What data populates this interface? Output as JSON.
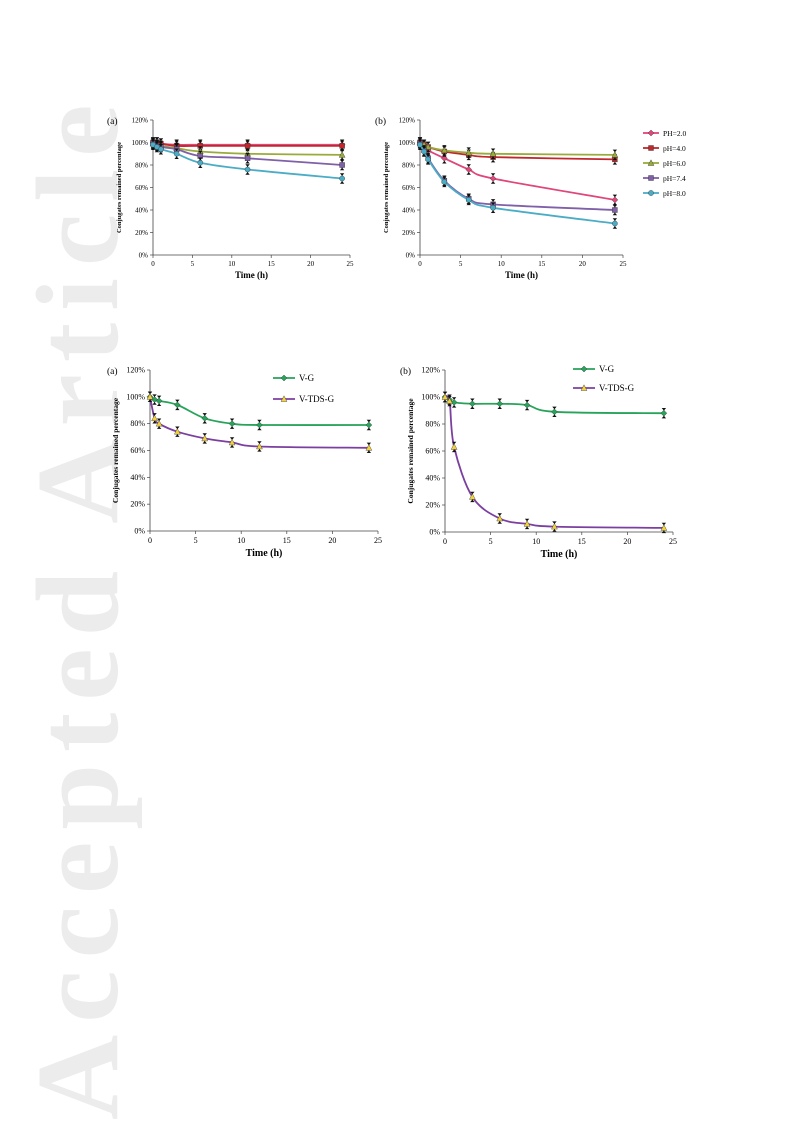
{
  "watermark": "Accepted Article",
  "chart_data": [
    {
      "id": "top-a",
      "type": "line",
      "panel_label": "(a)",
      "ylabel": "Conjugates remained percentage",
      "xlabel": "Time (h)",
      "xlim": [
        0,
        25
      ],
      "ylim": [
        0,
        120
      ],
      "xticks": [
        0,
        5,
        10,
        15,
        20,
        25
      ],
      "yticks": [
        0,
        20,
        40,
        60,
        80,
        100,
        120
      ],
      "legend": null,
      "series": [
        {
          "name": "PH=2.0",
          "color": "#e0457b",
          "x": [
            0,
            0.5,
            1,
            3,
            6,
            12,
            24
          ],
          "y": [
            100,
            100,
            99,
            98,
            98,
            98,
            98
          ]
        },
        {
          "name": "pH=4.0",
          "color": "#c0282d",
          "x": [
            0,
            0.5,
            1,
            3,
            6,
            12,
            24
          ],
          "y": [
            100,
            100,
            99,
            97,
            97,
            97,
            97
          ]
        },
        {
          "name": "pH=6.0",
          "color": "#9aab3b",
          "x": [
            0,
            0.5,
            1,
            3,
            6,
            12,
            24
          ],
          "y": [
            99,
            98,
            97,
            95,
            92,
            90,
            89
          ]
        },
        {
          "name": "pH=7.4",
          "color": "#8060a8",
          "x": [
            0,
            0.5,
            1,
            3,
            6,
            12,
            24
          ],
          "y": [
            99,
            97,
            96,
            94,
            88,
            86,
            80
          ]
        },
        {
          "name": "pH=8.0",
          "color": "#4bacc6",
          "x": [
            0,
            0.5,
            1,
            3,
            6,
            12,
            24
          ],
          "y": [
            98,
            96,
            94,
            90,
            82,
            76,
            68
          ]
        }
      ]
    },
    {
      "id": "top-b",
      "type": "line",
      "panel_label": "(b)",
      "ylabel": "Conjugates remained percentage",
      "xlabel": "Time (h)",
      "xlim": [
        0,
        25
      ],
      "ylim": [
        0,
        120
      ],
      "xticks": [
        0,
        5,
        10,
        15,
        20,
        25
      ],
      "yticks": [
        0,
        20,
        40,
        60,
        80,
        100,
        120
      ],
      "legend": "right",
      "series": [
        {
          "name": "PH=2.0",
          "color": "#e0457b",
          "x": [
            0,
            0.5,
            1,
            3,
            6,
            9,
            24
          ],
          "y": [
            100,
            97,
            93,
            86,
            76,
            68,
            49
          ]
        },
        {
          "name": "pH=4.0",
          "color": "#c0282d",
          "x": [
            0,
            0.5,
            1,
            3,
            6,
            9,
            24
          ],
          "y": [
            100,
            98,
            96,
            92,
            89,
            87,
            85
          ]
        },
        {
          "name": "pH=6.0",
          "color": "#9aab3b",
          "x": [
            0,
            0.5,
            1,
            3,
            6,
            9,
            24
          ],
          "y": [
            100,
            98,
            96,
            93,
            91,
            90,
            89
          ]
        },
        {
          "name": "pH=7.4",
          "color": "#8060a8",
          "x": [
            0,
            0.5,
            1,
            3,
            6,
            9,
            24
          ],
          "y": [
            99,
            93,
            86,
            66,
            50,
            45,
            40
          ]
        },
        {
          "name": "pH=8.0",
          "color": "#4bacc6",
          "x": [
            0,
            0.5,
            1,
            3,
            6,
            9,
            24
          ],
          "y": [
            98,
            92,
            85,
            65,
            49,
            42,
            28
          ]
        }
      ]
    },
    {
      "id": "bottom-a",
      "type": "line",
      "panel_label": "(a)",
      "ylabel": "Conjugates remained percentage",
      "xlabel": "Time (h)",
      "xlim": [
        0,
        25
      ],
      "ylim": [
        0,
        120
      ],
      "xticks": [
        0,
        5,
        10,
        15,
        20,
        25
      ],
      "yticks": [
        0,
        20,
        40,
        60,
        80,
        100,
        120
      ],
      "legend": "top-right",
      "series": [
        {
          "name": "V-G",
          "color": "#27a35a",
          "x": [
            0,
            0.5,
            1,
            3,
            6,
            9,
            12,
            24
          ],
          "y": [
            100,
            98,
            97,
            94,
            84,
            80,
            79,
            79
          ]
        },
        {
          "name": "V-TDS-G",
          "color": "#7b3fa0",
          "x": [
            0,
            0.5,
            1,
            3,
            6,
            9,
            12,
            24
          ],
          "y": [
            100,
            84,
            80,
            74,
            69,
            66,
            63,
            62
          ]
        }
      ]
    },
    {
      "id": "bottom-b",
      "type": "line",
      "panel_label": "(b)",
      "ylabel": "Conjugates remained percentage",
      "xlabel": "Time (h)",
      "xlim": [
        0,
        25
      ],
      "ylim": [
        0,
        120
      ],
      "xticks": [
        0,
        5,
        10,
        15,
        20,
        25
      ],
      "yticks": [
        0,
        20,
        40,
        60,
        80,
        100,
        120
      ],
      "legend": "top-left",
      "series": [
        {
          "name": "V-G",
          "color": "#27a35a",
          "x": [
            0,
            0.5,
            1,
            3,
            6,
            9,
            12,
            24
          ],
          "y": [
            100,
            98,
            96,
            95,
            95,
            94,
            89,
            88
          ]
        },
        {
          "name": "V-TDS-G",
          "color": "#7b3fa0",
          "x": [
            0,
            0.5,
            1,
            3,
            6,
            9,
            12,
            24
          ],
          "y": [
            100,
            97,
            63,
            26,
            10,
            6,
            4,
            3
          ]
        }
      ]
    }
  ]
}
